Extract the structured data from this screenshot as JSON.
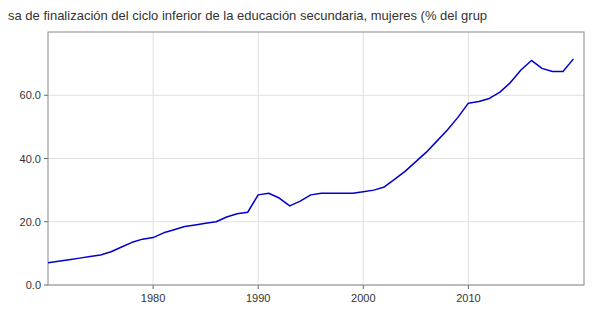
{
  "chart_data": {
    "type": "line",
    "title": "sa de finalización del ciclo inferior de la educación secundaria, mujeres (% del grup",
    "x": [
      1970,
      1971,
      1972,
      1973,
      1974,
      1975,
      1976,
      1977,
      1978,
      1979,
      1980,
      1981,
      1982,
      1983,
      1984,
      1985,
      1986,
      1987,
      1988,
      1989,
      1990,
      1991,
      1992,
      1993,
      1994,
      1995,
      1996,
      1997,
      1998,
      1999,
      2000,
      2001,
      2002,
      2003,
      2004,
      2005,
      2006,
      2007,
      2008,
      2009,
      2010,
      2011,
      2012,
      2013,
      2014,
      2015,
      2016,
      2017,
      2018,
      2019,
      2020
    ],
    "values": [
      7.0,
      7.5,
      8.0,
      8.5,
      9.0,
      9.5,
      10.5,
      12.0,
      13.5,
      14.5,
      15.0,
      16.5,
      17.5,
      18.5,
      19.0,
      19.5,
      20.0,
      21.5,
      22.5,
      23.0,
      28.5,
      29.0,
      27.5,
      25.0,
      26.5,
      28.5,
      29.0,
      29.0,
      29.0,
      29.0,
      29.5,
      30.0,
      31.0,
      33.5,
      36.0,
      39.0,
      42.0,
      45.5,
      49.0,
      53.0,
      57.5,
      58.0,
      59.0,
      61.0,
      64.0,
      68.0,
      71.0,
      68.5,
      67.5,
      67.5,
      71.5
    ],
    "color": "#0000CC",
    "xlim": [
      1970,
      2021
    ],
    "ylim": [
      0.0,
      80.0
    ],
    "xticks": [
      1980,
      1990,
      2000,
      2010
    ],
    "yticks": [
      {
        "value": 0.0,
        "label": "0.0"
      },
      {
        "value": 20.0,
        "label": "20.0"
      },
      {
        "value": 40.0,
        "label": "40.0"
      },
      {
        "value": 60.0,
        "label": "60.0"
      }
    ],
    "grid": true
  }
}
